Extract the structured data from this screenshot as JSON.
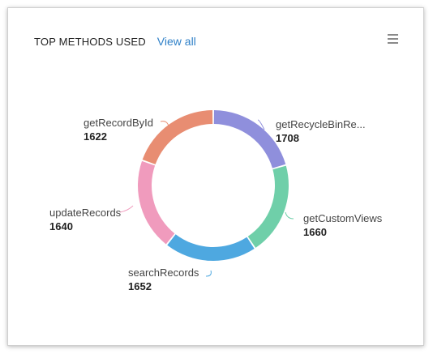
{
  "header": {
    "title": "TOP METHODS USED",
    "view_all": "View all"
  },
  "icons": {
    "menu": "hamburger-menu-icon"
  },
  "chart_data": {
    "type": "pie",
    "donut": true,
    "title": "TOP METHODS USED",
    "slices": [
      {
        "label": "getRecycleBinRe...",
        "value": 1708,
        "color": "#8f8fdc"
      },
      {
        "label": "getCustomViews",
        "value": 1660,
        "color": "#6fcfa9"
      },
      {
        "label": "searchRecords",
        "value": 1652,
        "color": "#4ea8e0"
      },
      {
        "label": "updateRecords",
        "value": 1640,
        "color": "#f09bbd"
      },
      {
        "label": "getRecordById",
        "value": 1622,
        "color": "#e88d72"
      }
    ]
  }
}
